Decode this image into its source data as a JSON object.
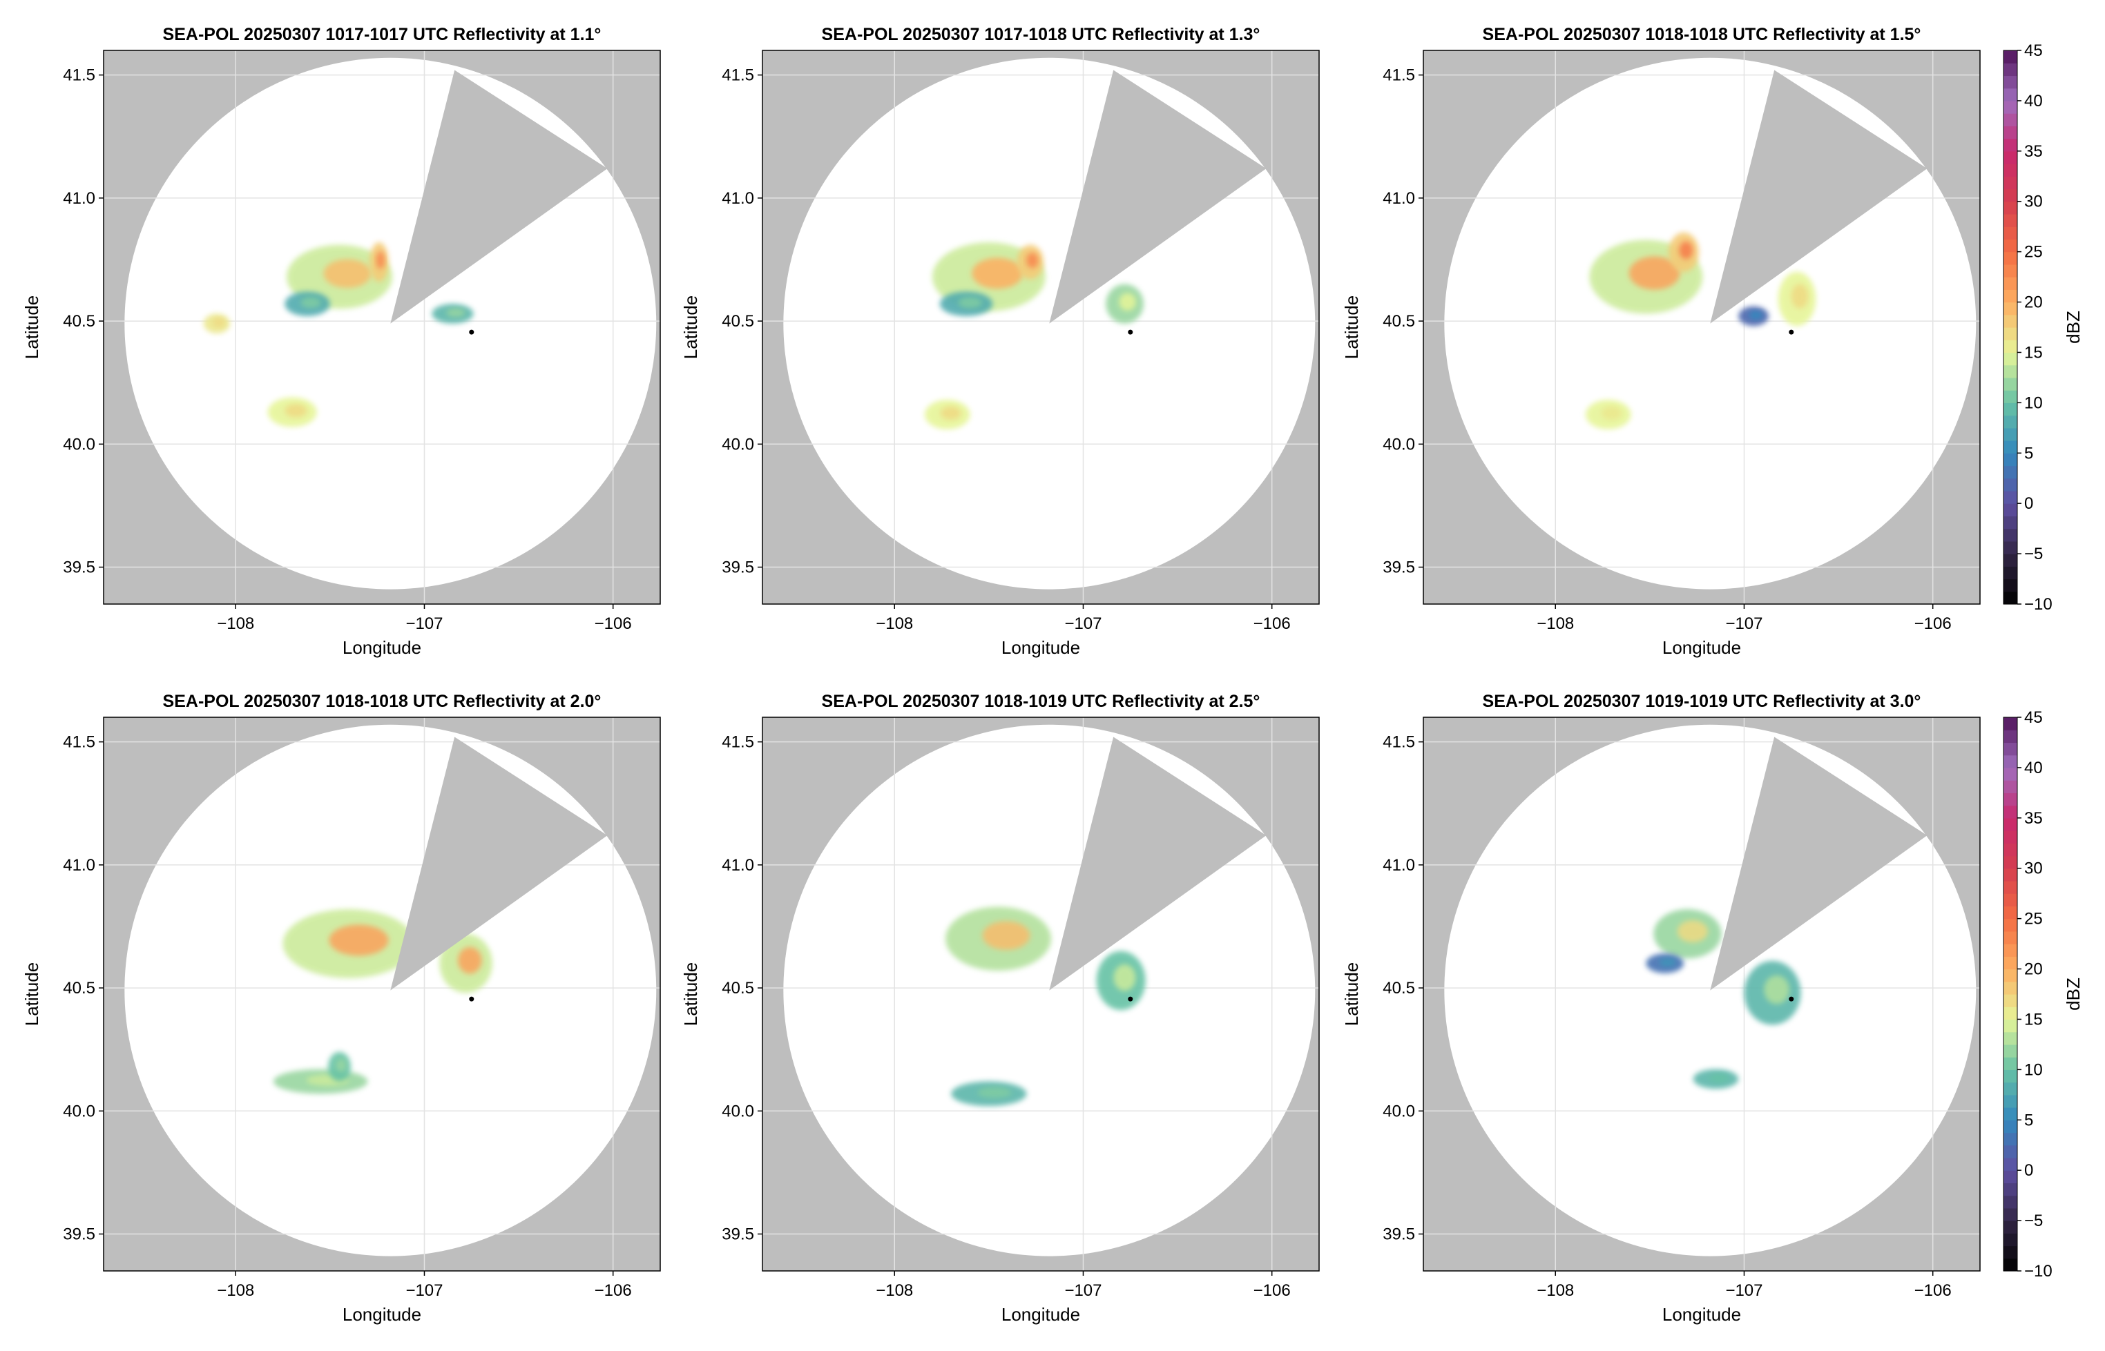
{
  "chart_data": {
    "type": "heatmap",
    "xlabel": "Longitude",
    "ylabel": "Latitude",
    "xlim": [
      -108.7,
      -105.75
    ],
    "ylim": [
      39.35,
      41.6
    ],
    "xticks": [
      -108,
      -107,
      -106
    ],
    "yticks": [
      39.5,
      40.0,
      40.5,
      41.0,
      41.5
    ],
    "xtick_labels": [
      "−108",
      "−107",
      "−106"
    ],
    "ytick_labels": [
      "39.5",
      "40.0",
      "40.5",
      "41.0",
      "41.5"
    ],
    "grid": true,
    "radar_site": {
      "lon": -107.18,
      "lat": 40.49
    },
    "range_circle_lat_radius": 1.08,
    "blocked_sector_vertices": [
      [
        -107.18,
        40.49
      ],
      [
        -106.84,
        41.52
      ],
      [
        -106.03,
        41.12
      ]
    ],
    "marker": {
      "lon": -106.75,
      "lat": 40.455,
      "color": "#000000"
    },
    "colorbar": {
      "label": "dBZ",
      "min": -10,
      "max": 45,
      "ticks": [
        -10,
        -5,
        0,
        5,
        10,
        15,
        20,
        25,
        30,
        35,
        40,
        45
      ],
      "tick_labels": [
        "−10",
        "−5",
        "0",
        "5",
        "10",
        "15",
        "20",
        "25",
        "30",
        "35",
        "40",
        "45"
      ]
    },
    "colors": {
      "no_data": "#bebebe",
      "in_range": "#ffffff",
      "gridline": "#e3e3e3"
    },
    "panels": [
      {
        "title": "SEA-POL 20250307 1017-1017 UTC Reflectivity at 1.1°",
        "show_colorbar": false,
        "echoes": [
          {
            "lon": -107.45,
            "lat": 40.68,
            "rx": 0.28,
            "ry": 0.13,
            "dbz": 14,
            "core_dbz": 19
          },
          {
            "lon": -107.24,
            "lat": 40.74,
            "rx": 0.05,
            "ry": 0.08,
            "dbz": 18,
            "core_dbz": 23
          },
          {
            "lon": -107.62,
            "lat": 40.57,
            "rx": 0.12,
            "ry": 0.05,
            "dbz": 8,
            "core_dbz": 11
          },
          {
            "lon": -106.85,
            "lat": 40.53,
            "rx": 0.11,
            "ry": 0.04,
            "dbz": 9,
            "core_dbz": 12
          },
          {
            "lon": -107.7,
            "lat": 40.13,
            "rx": 0.13,
            "ry": 0.06,
            "dbz": 15,
            "core_dbz": 17
          },
          {
            "lon": -108.1,
            "lat": 40.49,
            "rx": 0.07,
            "ry": 0.04,
            "dbz": 16,
            "core_dbz": 17
          }
        ]
      },
      {
        "title": "SEA-POL 20250307 1017-1018 UTC Reflectivity at 1.3°",
        "show_colorbar": false,
        "echoes": [
          {
            "lon": -107.5,
            "lat": 40.68,
            "rx": 0.3,
            "ry": 0.14,
            "dbz": 14,
            "core_dbz": 20
          },
          {
            "lon": -107.28,
            "lat": 40.74,
            "rx": 0.07,
            "ry": 0.07,
            "dbz": 18,
            "core_dbz": 23
          },
          {
            "lon": -107.62,
            "lat": 40.57,
            "rx": 0.14,
            "ry": 0.05,
            "dbz": 8,
            "core_dbz": 11
          },
          {
            "lon": -106.78,
            "lat": 40.57,
            "rx": 0.1,
            "ry": 0.08,
            "dbz": 12,
            "core_dbz": 15
          },
          {
            "lon": -107.72,
            "lat": 40.12,
            "rx": 0.12,
            "ry": 0.06,
            "dbz": 15,
            "core_dbz": 17
          }
        ]
      },
      {
        "title": "SEA-POL 20250307 1018-1018 UTC Reflectivity at 1.5°",
        "show_colorbar": true,
        "echoes": [
          {
            "lon": -107.52,
            "lat": 40.68,
            "rx": 0.3,
            "ry": 0.15,
            "dbz": 14,
            "core_dbz": 21
          },
          {
            "lon": -107.32,
            "lat": 40.78,
            "rx": 0.08,
            "ry": 0.08,
            "dbz": 18,
            "core_dbz": 24
          },
          {
            "lon": -106.72,
            "lat": 40.59,
            "rx": 0.1,
            "ry": 0.11,
            "dbz": 15,
            "core_dbz": 17
          },
          {
            "lon": -106.95,
            "lat": 40.52,
            "rx": 0.08,
            "ry": 0.04,
            "dbz": 2,
            "core_dbz": 5
          },
          {
            "lon": -107.72,
            "lat": 40.12,
            "rx": 0.12,
            "ry": 0.06,
            "dbz": 15,
            "core_dbz": 16
          }
        ]
      },
      {
        "title": "SEA-POL 20250307 1018-1018 UTC Reflectivity at 2.0°",
        "show_colorbar": false,
        "echoes": [
          {
            "lon": -107.4,
            "lat": 40.68,
            "rx": 0.35,
            "ry": 0.14,
            "dbz": 14,
            "core_dbz": 21
          },
          {
            "lon": -106.78,
            "lat": 40.6,
            "rx": 0.14,
            "ry": 0.12,
            "dbz": 14,
            "core_dbz": 21
          },
          {
            "lon": -107.55,
            "lat": 40.12,
            "rx": 0.25,
            "ry": 0.05,
            "dbz": 12,
            "core_dbz": 14
          },
          {
            "lon": -107.45,
            "lat": 40.18,
            "rx": 0.06,
            "ry": 0.06,
            "dbz": 10,
            "core_dbz": 12
          }
        ]
      },
      {
        "title": "SEA-POL 20250307 1018-1019 UTC Reflectivity at 2.5°",
        "show_colorbar": false,
        "echoes": [
          {
            "lon": -107.45,
            "lat": 40.7,
            "rx": 0.28,
            "ry": 0.13,
            "dbz": 13,
            "core_dbz": 19
          },
          {
            "lon": -106.8,
            "lat": 40.53,
            "rx": 0.13,
            "ry": 0.12,
            "dbz": 10,
            "core_dbz": 14
          },
          {
            "lon": -107.5,
            "lat": 40.07,
            "rx": 0.2,
            "ry": 0.05,
            "dbz": 9,
            "core_dbz": 11
          }
        ]
      },
      {
        "title": "SEA-POL 20250307 1019-1019 UTC Reflectivity at 3.0°",
        "show_colorbar": true,
        "echoes": [
          {
            "lon": -107.3,
            "lat": 40.72,
            "rx": 0.18,
            "ry": 0.1,
            "dbz": 12,
            "core_dbz": 17
          },
          {
            "lon": -106.85,
            "lat": 40.48,
            "rx": 0.15,
            "ry": 0.13,
            "dbz": 9,
            "core_dbz": 13
          },
          {
            "lon": -107.42,
            "lat": 40.6,
            "rx": 0.1,
            "ry": 0.04,
            "dbz": 3,
            "core_dbz": 6
          },
          {
            "lon": -107.15,
            "lat": 40.13,
            "rx": 0.12,
            "ry": 0.04,
            "dbz": 9,
            "core_dbz": 10
          }
        ]
      }
    ]
  }
}
